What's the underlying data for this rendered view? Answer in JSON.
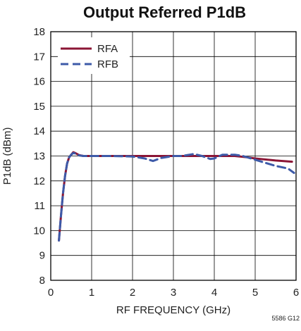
{
  "chart_data": {
    "type": "line",
    "title": "Output Referred P1dB",
    "xlabel": "RF FREQUENCY (GHz)",
    "ylabel": "P1dB (dBm)",
    "figure_id": "5586 G12",
    "xlim": [
      0,
      6
    ],
    "ylim": [
      8,
      18
    ],
    "x_ticks": [
      0,
      1,
      2,
      3,
      4,
      5,
      6
    ],
    "y_ticks": [
      8,
      9,
      10,
      11,
      12,
      13,
      14,
      15,
      16,
      17,
      18
    ],
    "grid": true,
    "legend_position": "top-left",
    "series": [
      {
        "name": "RFA",
        "color": "#8b1535",
        "style": "solid",
        "x": [
          0.2,
          0.25,
          0.3,
          0.35,
          0.4,
          0.45,
          0.5,
          0.55,
          0.6,
          0.7,
          0.8,
          1.0,
          1.5,
          2.0,
          2.5,
          3.0,
          3.5,
          4.0,
          4.5,
          4.8,
          5.0,
          5.5,
          5.9
        ],
        "y": [
          9.6,
          10.6,
          11.5,
          12.2,
          12.7,
          12.95,
          13.05,
          13.15,
          13.12,
          13.03,
          13.0,
          13.0,
          13.0,
          13.0,
          13.0,
          13.0,
          13.0,
          13.0,
          13.0,
          12.95,
          12.9,
          12.82,
          12.77
        ]
      },
      {
        "name": "RFB",
        "color": "#3d5aa8",
        "style": "dashed",
        "x": [
          0.2,
          0.25,
          0.3,
          0.35,
          0.4,
          0.45,
          0.5,
          0.55,
          0.6,
          0.7,
          0.8,
          1.0,
          1.5,
          2.0,
          2.3,
          2.5,
          2.7,
          3.0,
          3.2,
          3.5,
          3.7,
          3.9,
          4.0,
          4.2,
          4.5,
          4.7,
          5.0,
          5.3,
          5.5,
          5.8,
          5.95
        ],
        "y": [
          9.6,
          10.6,
          11.5,
          12.2,
          12.7,
          12.95,
          13.05,
          13.12,
          13.1,
          13.02,
          13.0,
          13.0,
          13.0,
          12.98,
          12.9,
          12.8,
          12.92,
          13.0,
          13.0,
          13.08,
          13.0,
          12.88,
          12.9,
          13.05,
          13.05,
          13.0,
          12.85,
          12.7,
          12.6,
          12.5,
          12.32
        ]
      }
    ]
  }
}
